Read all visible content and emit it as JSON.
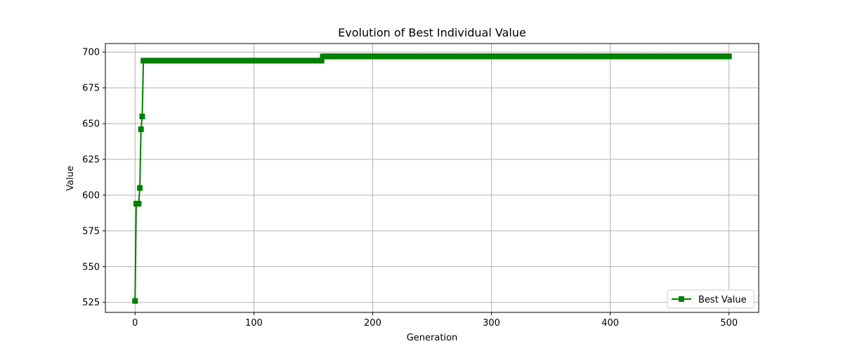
{
  "chart_data": {
    "type": "line",
    "title": "Evolution of Best Individual Value",
    "xlabel": "Generation",
    "ylabel": "Value",
    "xlim": [
      -25,
      525
    ],
    "ylim": [
      518,
      706
    ],
    "xticks": [
      0,
      100,
      200,
      300,
      400,
      500
    ],
    "yticks": [
      525,
      550,
      575,
      600,
      625,
      650,
      675,
      700
    ],
    "grid": true,
    "legend_position": "lower-right",
    "series": [
      {
        "name": "Best Value",
        "color": "#008000",
        "marker": "square",
        "points": [
          [
            0,
            526
          ],
          [
            1,
            594
          ],
          [
            2,
            594
          ],
          [
            3,
            594
          ],
          [
            4,
            605
          ],
          [
            5,
            646
          ],
          [
            6,
            655
          ],
          [
            7,
            694
          ],
          [
            157,
            694
          ],
          [
            158,
            697
          ],
          [
            500,
            697
          ]
        ]
      }
    ]
  }
}
